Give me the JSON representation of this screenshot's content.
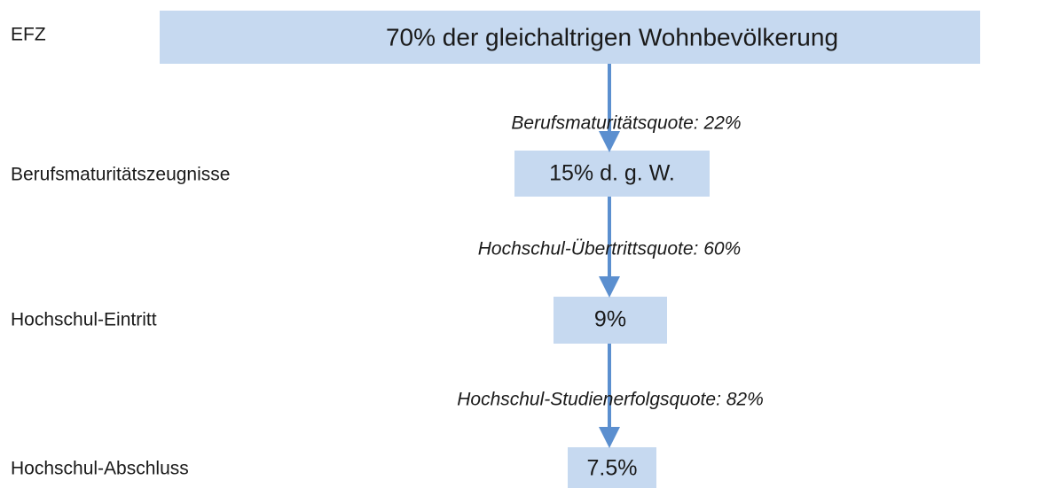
{
  "levels": [
    {
      "label": "EFZ",
      "box": "70% der gleichaltrigen Wohnbevölkerung"
    },
    {
      "label": "Berufsmaturitätszeugnisse",
      "box": "15% d. g. W."
    },
    {
      "label": "Hochschul-Eintritt",
      "box": "9%"
    },
    {
      "label": "Hochschul-Abschluss",
      "box": "7.5%"
    }
  ],
  "transitions": [
    "Berufsmaturitätsquote: 22%",
    "Hochschul-Übertrittsquote: 60%",
    "Hochschul-Studienerfolgsquote: 82%"
  ]
}
